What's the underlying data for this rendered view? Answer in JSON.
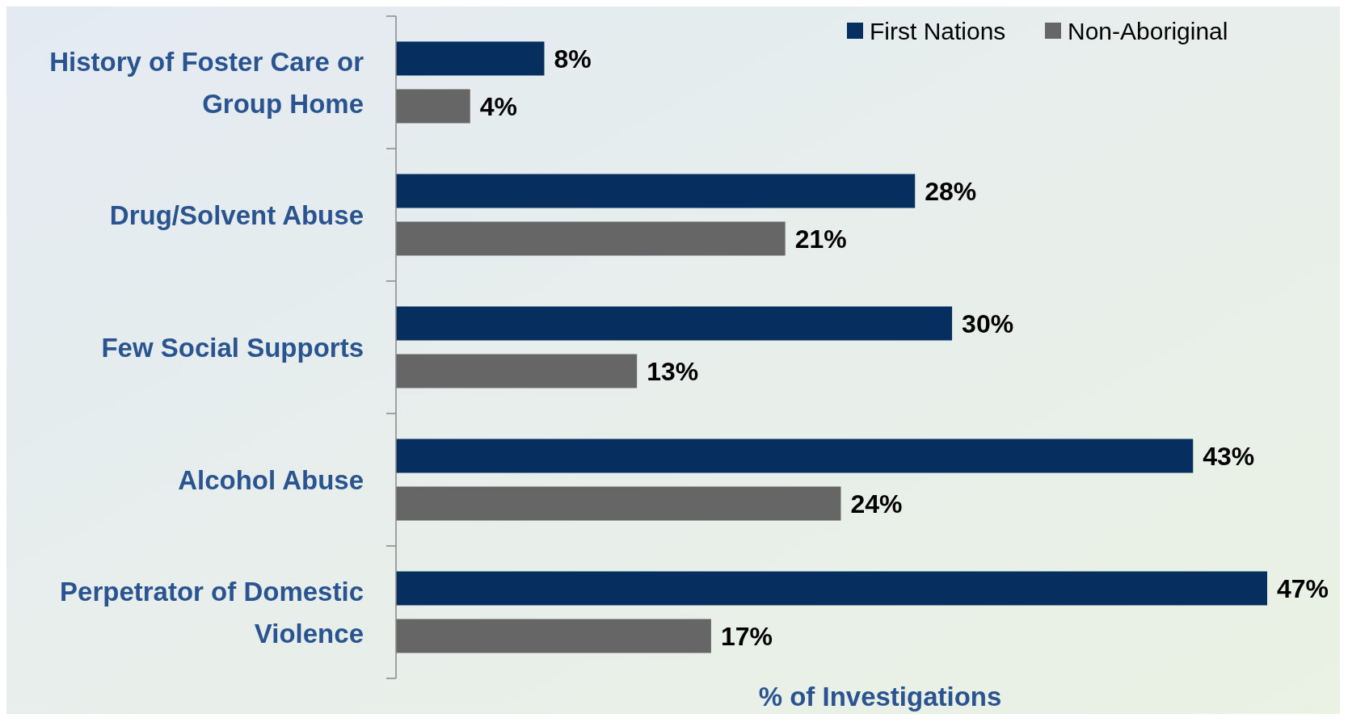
{
  "chart_data": {
    "type": "bar",
    "orientation": "horizontal",
    "xlabel": "% of Investigations",
    "categories": [
      "History of Foster Care or Group Home",
      "Drug/Solvent Abuse",
      "Few Social Supports",
      "Alcohol Abuse",
      "Perpetrator of Domestic Violence"
    ],
    "series": [
      {
        "name": "First Nations",
        "color": "#062f5f",
        "values": [
          8,
          28,
          30,
          43,
          47
        ],
        "value_labels": [
          "8%",
          "28%",
          "30%",
          "43%",
          "47%"
        ]
      },
      {
        "name": "Non-Aboriginal",
        "color": "#666666",
        "values": [
          4,
          21,
          13,
          24,
          17
        ],
        "value_labels": [
          "4%",
          "21%",
          "13%",
          "24%",
          "17%"
        ]
      }
    ],
    "tick_labels": "y",
    "legend": "top right"
  }
}
